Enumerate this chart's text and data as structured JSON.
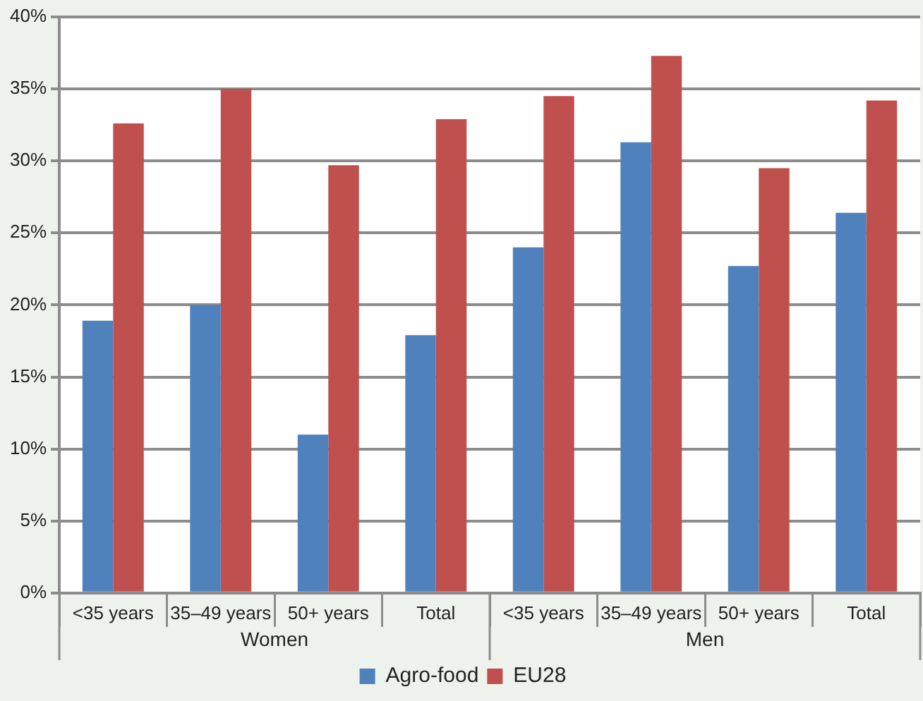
{
  "chart_data": {
    "type": "bar",
    "categories": [
      "<35 years",
      "35–49 years",
      "50+ years",
      "Total",
      "<35 years",
      "35–49 years",
      "50+ years",
      "Total"
    ],
    "series": [
      {
        "name": "Agro-food",
        "color": "#4f81bd",
        "values": [
          18.9,
          20,
          11,
          17.9,
          24,
          31.3,
          22.7,
          26.4
        ]
      },
      {
        "name": "EU28",
        "color": "#c0504d",
        "values": [
          32.6,
          35,
          29.7,
          32.9,
          34.5,
          37.3,
          29.5,
          34.2
        ]
      }
    ],
    "annotations": [
      "Women",
      "Men"
    ],
    "ylim": [
      0,
      40
    ],
    "yticks": [
      {
        "value": 0,
        "label": "0%"
      },
      {
        "value": 5,
        "label": "5%"
      },
      {
        "value": 10,
        "label": "10%"
      },
      {
        "value": 15,
        "label": "15%"
      },
      {
        "value": 20,
        "label": "20%"
      },
      {
        "value": 25,
        "label": "25%"
      },
      {
        "value": 30,
        "label": "30%"
      },
      {
        "value": 35,
        "label": "35%"
      },
      {
        "value": 40,
        "label": "40%"
      }
    ],
    "grid": "y",
    "legend": "bottom"
  }
}
